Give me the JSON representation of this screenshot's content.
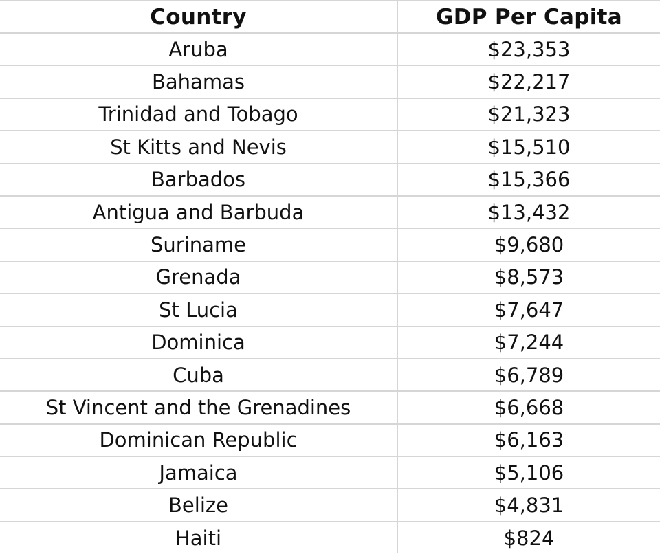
{
  "table": {
    "headers": [
      "Country",
      "GDP Per Capita"
    ],
    "rows": [
      [
        "Aruba",
        "$23,353"
      ],
      [
        "Bahamas",
        "$22,217"
      ],
      [
        "Trinidad and Tobago",
        "$21,323"
      ],
      [
        "St Kitts and Nevis",
        "$15,510"
      ],
      [
        "Barbados",
        "$15,366"
      ],
      [
        "Antigua and Barbuda",
        "$13,432"
      ],
      [
        "Suriname",
        "$9,680"
      ],
      [
        "Grenada",
        "$8,573"
      ],
      [
        "St Lucia",
        "$7,647"
      ],
      [
        "Dominica",
        "$7,244"
      ],
      [
        "Cuba",
        "$6,789"
      ],
      [
        "St Vincent and the Grenadines",
        "$6,668"
      ],
      [
        "Dominican Republic",
        "$6,163"
      ],
      [
        "Jamaica",
        "$5,106"
      ],
      [
        "Belize",
        "$4,831"
      ],
      [
        "Haiti",
        "$824"
      ]
    ]
  }
}
